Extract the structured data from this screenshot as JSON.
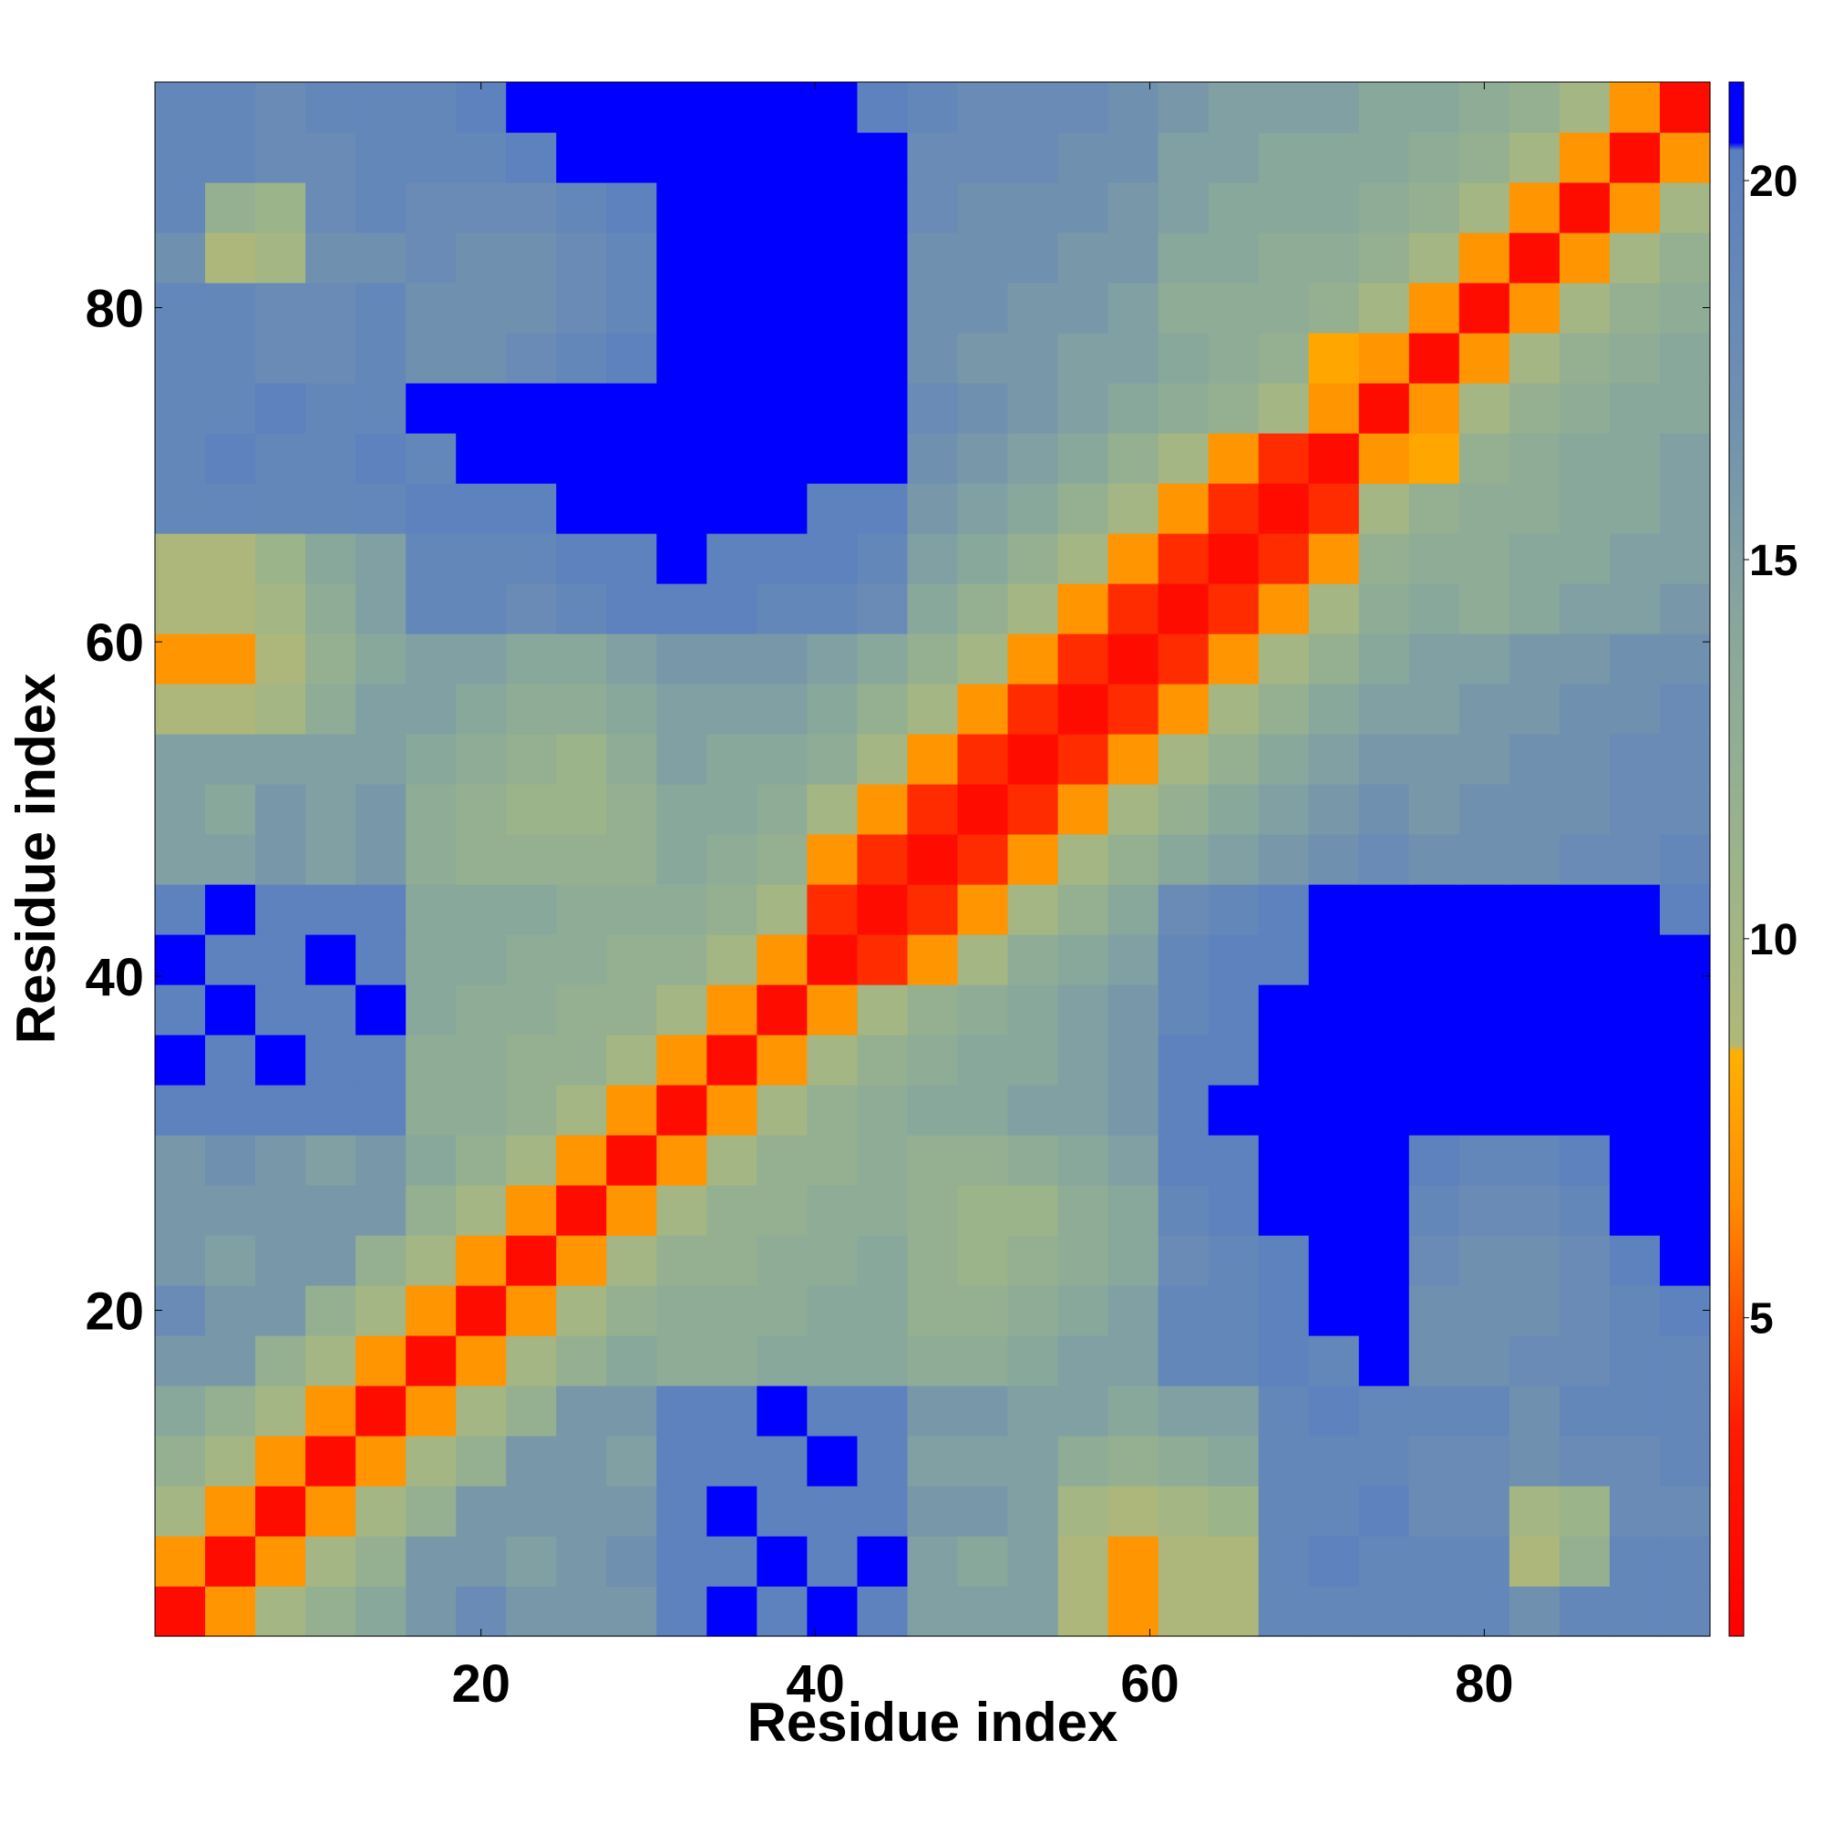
{
  "chart_data": {
    "type": "heatmap",
    "x_label": "Residue index",
    "y_label": "Residue index",
    "x": [
      2,
      5,
      8,
      11,
      14,
      17,
      20,
      23,
      26,
      29,
      32,
      35,
      38,
      41,
      44,
      47,
      50,
      53,
      56,
      59,
      62,
      65,
      68,
      71,
      74,
      77,
      80,
      83,
      86,
      89,
      92
    ],
    "y": [
      2,
      5,
      8,
      11,
      14,
      17,
      20,
      23,
      26,
      29,
      32,
      35,
      38,
      41,
      44,
      47,
      50,
      53,
      56,
      59,
      62,
      65,
      68,
      71,
      74,
      77,
      80,
      83,
      86,
      89,
      92
    ],
    "xlim": [
      0.5,
      93.5
    ],
    "ylim": [
      0.5,
      93.5
    ],
    "xticks": [
      20,
      40,
      60,
      80
    ],
    "yticks": [
      20,
      40,
      60,
      80
    ],
    "zlim": [
      0.8,
      21.3
    ],
    "zticks": [
      5,
      10,
      15,
      20
    ],
    "colorscale": [
      [
        0.8,
        "#ff0000"
      ],
      [
        3.5,
        "#ff1a00"
      ],
      [
        5,
        "#ff5000"
      ],
      [
        6.5,
        "#ff8c00"
      ],
      [
        8.5,
        "#ffb000"
      ],
      [
        8.6,
        "#b0b878"
      ],
      [
        11,
        "#9cb48a"
      ],
      [
        14,
        "#88a89c"
      ],
      [
        17,
        "#7090b0"
      ],
      [
        20.4,
        "#5a80c0"
      ],
      [
        20.5,
        "#0000ff"
      ],
      [
        21.3,
        "#0000ff"
      ]
    ],
    "z": [
      [
        2,
        7,
        10,
        12,
        14,
        16,
        18,
        16,
        16,
        16,
        20,
        21,
        20,
        21,
        20,
        15,
        15,
        15,
        9,
        7,
        9,
        9,
        19,
        19,
        19,
        19,
        19,
        17,
        19,
        19,
        19
      ],
      [
        7,
        2,
        7,
        10,
        12,
        16,
        16,
        15,
        16,
        17,
        20,
        20,
        21,
        20,
        21,
        15,
        14,
        15,
        9,
        7,
        9,
        9,
        19,
        20,
        19,
        19,
        19,
        9,
        12,
        19,
        19
      ],
      [
        10,
        7,
        2,
        7,
        10,
        12,
        16,
        16,
        16,
        16,
        20,
        21,
        20,
        20,
        20,
        16,
        16,
        15,
        10,
        9,
        10,
        11,
        19,
        19,
        20,
        18,
        18,
        10,
        11,
        18,
        18
      ],
      [
        12,
        10,
        7,
        2,
        7,
        10,
        12,
        16,
        16,
        15,
        20,
        20,
        20,
        21,
        20,
        15,
        15,
        15,
        13,
        12,
        13,
        14,
        19,
        19,
        19,
        18,
        18,
        17,
        18,
        18,
        19
      ],
      [
        14,
        12,
        10,
        7,
        2,
        7,
        10,
        12,
        16,
        16,
        20,
        20,
        21,
        20,
        20,
        16,
        16,
        15,
        15,
        14,
        15,
        15,
        19,
        20,
        19,
        19,
        19,
        17,
        19,
        19,
        19
      ],
      [
        16,
        16,
        12,
        10,
        7,
        2,
        7,
        10,
        12,
        14,
        13,
        13,
        14,
        14,
        14,
        13,
        13,
        14,
        15,
        15,
        19,
        19,
        20,
        19,
        21,
        17,
        17,
        18,
        18,
        19,
        19
      ],
      [
        18,
        16,
        16,
        12,
        10,
        7,
        2,
        7,
        10,
        12,
        13,
        13,
        13,
        14,
        14,
        12,
        12,
        13,
        14,
        15,
        19,
        19,
        20,
        21,
        21,
        17,
        17,
        17,
        18,
        19,
        20
      ],
      [
        16,
        15,
        16,
        16,
        12,
        10,
        7,
        2,
        7,
        10,
        12,
        12,
        13,
        13,
        14,
        12,
        11,
        12,
        13,
        14,
        18,
        19,
        20,
        21,
        21,
        18,
        17,
        17,
        18,
        20,
        21
      ],
      [
        16,
        16,
        16,
        16,
        16,
        12,
        10,
        7,
        2,
        7,
        10,
        12,
        12,
        13,
        13,
        12,
        11,
        11,
        13,
        14,
        19,
        20,
        21,
        21,
        21,
        19,
        18,
        18,
        19,
        21,
        21
      ],
      [
        16,
        17,
        16,
        15,
        16,
        14,
        12,
        10,
        7,
        2,
        7,
        10,
        12,
        12,
        13,
        12,
        12,
        13,
        14,
        15,
        20,
        20,
        21,
        21,
        21,
        20,
        19,
        19,
        20,
        21,
        21
      ],
      [
        20,
        20,
        20,
        20,
        20,
        13,
        13,
        12,
        10,
        7,
        2,
        7,
        10,
        12,
        13,
        14,
        14,
        15,
        15,
        16,
        20,
        21,
        21,
        21,
        21,
        21,
        21,
        21,
        21,
        21,
        21
      ],
      [
        21,
        20,
        21,
        20,
        20,
        13,
        13,
        12,
        12,
        10,
        7,
        2,
        7,
        10,
        12,
        13,
        14,
        14,
        15,
        16,
        20,
        20,
        21,
        21,
        21,
        21,
        21,
        21,
        21,
        21,
        21
      ],
      [
        20,
        21,
        20,
        20,
        21,
        14,
        13,
        13,
        12,
        12,
        10,
        7,
        2,
        7,
        10,
        12,
        13,
        14,
        15,
        16,
        19,
        20,
        21,
        21,
        21,
        21,
        21,
        21,
        21,
        21,
        21
      ],
      [
        21,
        20,
        20,
        21,
        20,
        14,
        14,
        13,
        13,
        12,
        12,
        10,
        7,
        2,
        4,
        7,
        10,
        13,
        14,
        15,
        19,
        20,
        20,
        21,
        21,
        21,
        21,
        21,
        21,
        21,
        21
      ],
      [
        20,
        21,
        20,
        20,
        20,
        14,
        14,
        14,
        13,
        13,
        13,
        12,
        10,
        4,
        2,
        4,
        7,
        10,
        12,
        14,
        18,
        19,
        20,
        21,
        21,
        21,
        21,
        21,
        21,
        21,
        20
      ],
      [
        15,
        15,
        16,
        15,
        16,
        13,
        12,
        12,
        12,
        12,
        14,
        13,
        12,
        7,
        4,
        2,
        4,
        7,
        10,
        12,
        14,
        15,
        16,
        17,
        18,
        17,
        17,
        17,
        18,
        18,
        19
      ],
      [
        15,
        14,
        16,
        15,
        16,
        13,
        12,
        11,
        11,
        12,
        14,
        14,
        13,
        10,
        7,
        4,
        2,
        4,
        7,
        10,
        12,
        14,
        15,
        16,
        17,
        16,
        17,
        17,
        17,
        18,
        18
      ],
      [
        15,
        15,
        15,
        15,
        15,
        14,
        13,
        12,
        11,
        13,
        15,
        14,
        14,
        13,
        10,
        7,
        4,
        2,
        4,
        7,
        10,
        12,
        14,
        15,
        16,
        16,
        16,
        17,
        17,
        18,
        18
      ],
      [
        9,
        9,
        10,
        13,
        15,
        15,
        14,
        13,
        13,
        14,
        15,
        15,
        15,
        14,
        12,
        10,
        7,
        4,
        2,
        4,
        7,
        10,
        12,
        14,
        15,
        15,
        16,
        16,
        17,
        17,
        18
      ],
      [
        7,
        7,
        9,
        12,
        14,
        15,
        15,
        14,
        14,
        15,
        16,
        16,
        16,
        15,
        14,
        12,
        10,
        7,
        4,
        2,
        4,
        7,
        10,
        12,
        14,
        15,
        15,
        16,
        16,
        17,
        17
      ],
      [
        9,
        9,
        10,
        13,
        15,
        19,
        19,
        18,
        19,
        20,
        20,
        20,
        19,
        19,
        18,
        14,
        12,
        10,
        7,
        4,
        2,
        4,
        7,
        10,
        13,
        14,
        13,
        14,
        15,
        15,
        16
      ],
      [
        9,
        9,
        11,
        14,
        15,
        19,
        19,
        19,
        20,
        20,
        21,
        20,
        20,
        20,
        19,
        15,
        14,
        12,
        10,
        7,
        4,
        2,
        4,
        7,
        12,
        13,
        13,
        14,
        14,
        15,
        15
      ],
      [
        19,
        19,
        19,
        19,
        19,
        20,
        20,
        20,
        21,
        21,
        21,
        21,
        21,
        20,
        20,
        16,
        15,
        14,
        12,
        10,
        7,
        4,
        2,
        4,
        10,
        12,
        13,
        13,
        14,
        14,
        15
      ],
      [
        19,
        20,
        19,
        19,
        20,
        19,
        21,
        21,
        21,
        21,
        21,
        21,
        21,
        21,
        21,
        17,
        16,
        15,
        14,
        12,
        10,
        7,
        4,
        2,
        7,
        8,
        12,
        13,
        14,
        14,
        15
      ],
      [
        19,
        19,
        20,
        19,
        19,
        21,
        21,
        21,
        21,
        21,
        21,
        21,
        21,
        21,
        21,
        18,
        17,
        16,
        15,
        14,
        13,
        12,
        10,
        7,
        2,
        7,
        10,
        12,
        13,
        14,
        14
      ],
      [
        19,
        19,
        18,
        18,
        19,
        17,
        17,
        18,
        19,
        20,
        21,
        21,
        21,
        21,
        21,
        17,
        16,
        16,
        15,
        15,
        14,
        13,
        12,
        8,
        7,
        2,
        7,
        10,
        12,
        13,
        14
      ],
      [
        19,
        19,
        18,
        18,
        19,
        17,
        17,
        17,
        18,
        19,
        21,
        21,
        21,
        21,
        21,
        17,
        17,
        16,
        16,
        15,
        13,
        13,
        13,
        12,
        10,
        7,
        2,
        7,
        10,
        12,
        13
      ],
      [
        17,
        9,
        10,
        17,
        17,
        18,
        17,
        17,
        18,
        19,
        21,
        21,
        21,
        21,
        21,
        17,
        17,
        17,
        16,
        16,
        14,
        14,
        13,
        13,
        12,
        10,
        7,
        2,
        7,
        10,
        12
      ],
      [
        19,
        12,
        11,
        18,
        19,
        18,
        18,
        18,
        19,
        20,
        21,
        21,
        21,
        21,
        21,
        18,
        17,
        17,
        17,
        16,
        15,
        14,
        14,
        14,
        13,
        12,
        10,
        7,
        2,
        7,
        10
      ],
      [
        19,
        19,
        18,
        18,
        19,
        19,
        19,
        20,
        21,
        21,
        21,
        21,
        21,
        21,
        21,
        18,
        18,
        18,
        17,
        17,
        15,
        15,
        14,
        14,
        14,
        13,
        12,
        10,
        7,
        2,
        7
      ],
      [
        19,
        19,
        18,
        19,
        19,
        19,
        20,
        21,
        21,
        21,
        21,
        21,
        21,
        21,
        20,
        19,
        18,
        18,
        18,
        17,
        16,
        15,
        15,
        15,
        14,
        14,
        13,
        12,
        10,
        7,
        2
      ]
    ]
  }
}
